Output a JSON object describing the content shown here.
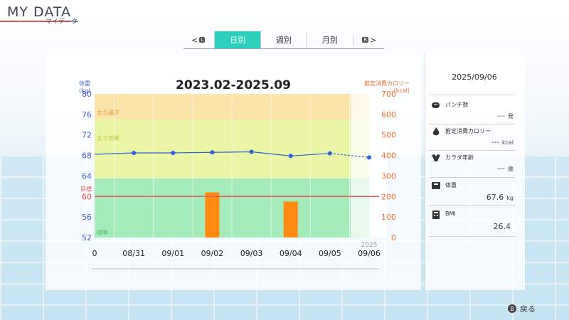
{
  "header": {
    "title": "MY DATA",
    "subtitle": "マイデータ"
  },
  "tabs": {
    "left_glyph": "L",
    "right_glyph": "R",
    "items": [
      {
        "label": "日別",
        "active": true
      },
      {
        "label": "週別",
        "active": false
      },
      {
        "label": "月別",
        "active": false
      }
    ]
  },
  "chart_data": {
    "type": "line",
    "title": "2023.02-2025.09",
    "ylabel_left": [
      "体重",
      "(kg)"
    ],
    "ylabel_right": [
      "推定消費カロリー",
      "(kcal)"
    ],
    "categories": [
      "0",
      "08/31",
      "09/01",
      "09/02",
      "09/03",
      "09/04",
      "09/05",
      "09/06"
    ],
    "year_label": "2025",
    "y_left": {
      "min": 52,
      "max": 80,
      "ticks": [
        52,
        56,
        60,
        64,
        68,
        72,
        76,
        80
      ],
      "highlight_tick": 60,
      "highlight_color": "#e04c4c"
    },
    "y_right": {
      "min": 0,
      "max": 700,
      "ticks": [
        0,
        100,
        200,
        300,
        400,
        500,
        600,
        700
      ]
    },
    "zones": [
      {
        "label": "太り過ぎ",
        "from": 75,
        "to": 80,
        "color": "#fbe3a9",
        "text_color": "#e7903b"
      },
      {
        "label": "太り気味",
        "from": 63.5,
        "to": 75,
        "color": "#eaf6a6",
        "text_color": "#c2bd36"
      },
      {
        "label": "標準",
        "from": 52,
        "to": 63.5,
        "color": "#a4ebb9",
        "text_color": "#51b96f"
      }
    ],
    "goal": {
      "label": "目標",
      "value": 60,
      "color": "#e25d5d"
    },
    "weight_series": {
      "name": "体重",
      "color": "#2f5fd6",
      "x": [
        "08/31",
        "09/01",
        "09/02",
        "09/03",
        "09/04",
        "09/05",
        "09/06"
      ],
      "values": [
        68.5,
        68.5,
        68.6,
        68.7,
        67.9,
        68.4,
        67.6
      ]
    },
    "calorie_series": {
      "name": "推定消費カロリー",
      "color": "#ff8a12",
      "x": [
        "09/02",
        "09/04"
      ],
      "values": [
        220,
        175
      ]
    },
    "highlight_category": "09/06"
  },
  "side": {
    "date": "2025/09/06",
    "stats": [
      {
        "label": "パンチ数",
        "value": "---",
        "unit": "発",
        "icon": "punch-icon"
      },
      {
        "label": "推定消費カロリー",
        "value": "---",
        "unit": "kcal",
        "icon": "flame-icon"
      },
      {
        "label": "カラダ年齢",
        "value": "---",
        "unit": "歳",
        "icon": "muscle-icon"
      },
      {
        "label": "体重",
        "value": "67.6",
        "unit": "kg",
        "icon": "scale-icon"
      },
      {
        "label": "BMI",
        "value": "26.4",
        "unit": "",
        "icon": "calculator-icon"
      }
    ]
  },
  "footer": {
    "back_glyph": "B",
    "back_label": "戻る"
  }
}
